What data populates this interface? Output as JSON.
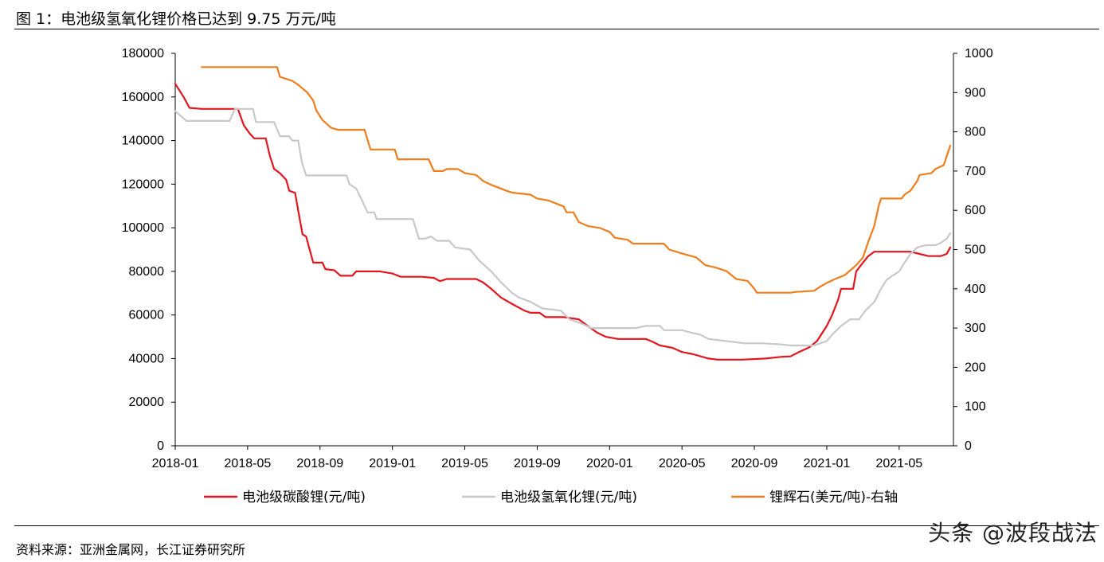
{
  "figure": {
    "title": "图 1：电池级氢氧化锂价格已达到 9.75 万元/吨",
    "source": "资料来源：亚洲金属网，长江证券研究所",
    "watermark": "头条 @波段战法"
  },
  "chart_data": {
    "type": "line",
    "title": "",
    "xlabel": "",
    "ylabel": "",
    "x_ticks": [
      "2018-01",
      "2018-05",
      "2018-09",
      "2019-01",
      "2019-05",
      "2019-09",
      "2020-01",
      "2020-05",
      "2020-09",
      "2021-01",
      "2021-05"
    ],
    "x_range": [
      "2018-01",
      "2021-08"
    ],
    "y_left": {
      "range": [
        0,
        180000
      ],
      "ticks": [
        "0",
        "20000",
        "40000",
        "60000",
        "80000",
        "100000",
        "120000",
        "140000",
        "160000",
        "180000"
      ]
    },
    "y_right": {
      "range": [
        0,
        1000
      ],
      "ticks": [
        "0",
        "100",
        "200",
        "300",
        "400",
        "500",
        "600",
        "700",
        "800",
        "900",
        "1000"
      ]
    },
    "legend_position": "bottom",
    "grid": false,
    "series": [
      {
        "name": "电池级碳酸锂(元/吨)",
        "axis": "left",
        "color": "#e3151e",
        "points": [
          [
            "2018-01-01",
            166000
          ],
          [
            "2018-01-15",
            160000
          ],
          [
            "2018-01-25",
            155000
          ],
          [
            "2018-02-15",
            154500
          ],
          [
            "2018-03-15",
            154500
          ],
          [
            "2018-04-15",
            154500
          ],
          [
            "2018-04-25",
            147000
          ],
          [
            "2018-05-05",
            143000
          ],
          [
            "2018-05-12",
            141000
          ],
          [
            "2018-06-01",
            141000
          ],
          [
            "2018-06-08",
            133000
          ],
          [
            "2018-06-15",
            127000
          ],
          [
            "2018-06-25",
            125000
          ],
          [
            "2018-07-05",
            122000
          ],
          [
            "2018-07-10",
            117000
          ],
          [
            "2018-07-20",
            116000
          ],
          [
            "2018-07-25",
            108000
          ],
          [
            "2018-08-02",
            97000
          ],
          [
            "2018-08-08",
            96000
          ],
          [
            "2018-08-15",
            89000
          ],
          [
            "2018-08-20",
            84000
          ],
          [
            "2018-09-05",
            84000
          ],
          [
            "2018-09-10",
            81000
          ],
          [
            "2018-09-25",
            80500
          ],
          [
            "2018-10-05",
            78000
          ],
          [
            "2018-10-25",
            78000
          ],
          [
            "2018-11-01",
            80000
          ],
          [
            "2018-12-10",
            80000
          ],
          [
            "2019-01-01",
            79000
          ],
          [
            "2019-01-15",
            77500
          ],
          [
            "2019-02-20",
            77500
          ],
          [
            "2019-03-10",
            77000
          ],
          [
            "2019-03-20",
            75500
          ],
          [
            "2019-04-01",
            76500
          ],
          [
            "2019-05-01",
            76500
          ],
          [
            "2019-05-20",
            76500
          ],
          [
            "2019-06-01",
            75000
          ],
          [
            "2019-06-15",
            72000
          ],
          [
            "2019-07-01",
            68000
          ],
          [
            "2019-07-20",
            65000
          ],
          [
            "2019-08-10",
            62000
          ],
          [
            "2019-08-20",
            61000
          ],
          [
            "2019-09-05",
            61000
          ],
          [
            "2019-09-15",
            59000
          ],
          [
            "2019-10-15",
            59000
          ],
          [
            "2019-11-10",
            58000
          ],
          [
            "2019-11-25",
            55000
          ],
          [
            "2019-12-10",
            52000
          ],
          [
            "2019-12-25",
            50000
          ],
          [
            "2020-01-15",
            49000
          ],
          [
            "2020-03-01",
            49000
          ],
          [
            "2020-03-10",
            48000
          ],
          [
            "2020-03-25",
            46000
          ],
          [
            "2020-04-15",
            45000
          ],
          [
            "2020-05-01",
            43000
          ],
          [
            "2020-05-20",
            42000
          ],
          [
            "2020-06-15",
            40000
          ],
          [
            "2020-07-01",
            39500
          ],
          [
            "2020-08-10",
            39500
          ],
          [
            "2020-09-20",
            40000
          ],
          [
            "2020-10-15",
            40800
          ],
          [
            "2020-11-01",
            41000
          ],
          [
            "2020-11-15",
            43000
          ],
          [
            "2020-12-01",
            45000
          ],
          [
            "2020-12-15",
            48000
          ],
          [
            "2021-01-01",
            55000
          ],
          [
            "2021-01-10",
            60000
          ],
          [
            "2021-01-20",
            67000
          ],
          [
            "2021-01-25",
            72000
          ],
          [
            "2021-02-05",
            72000
          ],
          [
            "2021-02-15",
            72000
          ],
          [
            "2021-02-20",
            80000
          ],
          [
            "2021-03-01",
            84000
          ],
          [
            "2021-03-10",
            87000
          ],
          [
            "2021-03-20",
            89000
          ],
          [
            "2021-05-01",
            89000
          ],
          [
            "2021-05-20",
            89000
          ],
          [
            "2021-06-05",
            88000
          ],
          [
            "2021-06-20",
            87000
          ],
          [
            "2021-07-10",
            87000
          ],
          [
            "2021-07-20",
            88000
          ],
          [
            "2021-07-26",
            91000
          ]
        ]
      },
      {
        "name": "电池级氢氧化锂(元/吨)",
        "axis": "left",
        "color": "#c8c8c8",
        "points": [
          [
            "2018-01-01",
            153500
          ],
          [
            "2018-01-20",
            149000
          ],
          [
            "2018-04-01",
            149000
          ],
          [
            "2018-04-10",
            154500
          ],
          [
            "2018-05-10",
            154500
          ],
          [
            "2018-05-15",
            148500
          ],
          [
            "2018-06-15",
            148500
          ],
          [
            "2018-06-25",
            142000
          ],
          [
            "2018-07-10",
            142000
          ],
          [
            "2018-07-15",
            140000
          ],
          [
            "2018-07-25",
            140000
          ],
          [
            "2018-08-01",
            130000
          ],
          [
            "2018-08-08",
            124000
          ],
          [
            "2018-09-15",
            124000
          ],
          [
            "2018-10-15",
            124000
          ],
          [
            "2018-10-20",
            120000
          ],
          [
            "2018-11-01",
            118000
          ],
          [
            "2018-11-10",
            113000
          ],
          [
            "2018-11-20",
            107000
          ],
          [
            "2018-12-01",
            107000
          ],
          [
            "2018-12-05",
            104000
          ],
          [
            "2019-01-15",
            104000
          ],
          [
            "2019-02-05",
            104000
          ],
          [
            "2019-02-15",
            95000
          ],
          [
            "2019-02-25",
            95000
          ],
          [
            "2019-03-05",
            96000
          ],
          [
            "2019-03-15",
            94000
          ],
          [
            "2019-04-05",
            94000
          ],
          [
            "2019-04-15",
            91000
          ],
          [
            "2019-05-10",
            90000
          ],
          [
            "2019-05-25",
            85000
          ],
          [
            "2019-06-15",
            80000
          ],
          [
            "2019-07-01",
            75000
          ],
          [
            "2019-07-20",
            70000
          ],
          [
            "2019-08-01",
            68000
          ],
          [
            "2019-08-20",
            66000
          ],
          [
            "2019-09-10",
            63000
          ],
          [
            "2019-10-10",
            62000
          ],
          [
            "2019-10-25",
            58000
          ],
          [
            "2019-11-15",
            56000
          ],
          [
            "2019-12-01",
            54000
          ],
          [
            "2020-01-01",
            54000
          ],
          [
            "2020-02-15",
            54000
          ],
          [
            "2020-03-01",
            55000
          ],
          [
            "2020-03-25",
            55000
          ],
          [
            "2020-04-01",
            53000
          ],
          [
            "2020-05-01",
            53000
          ],
          [
            "2020-05-15",
            52000
          ],
          [
            "2020-06-01",
            51000
          ],
          [
            "2020-06-15",
            49000
          ],
          [
            "2020-07-15",
            48000
          ],
          [
            "2020-08-15",
            47000
          ],
          [
            "2020-09-15",
            47000
          ],
          [
            "2020-10-15",
            46500
          ],
          [
            "2020-11-01",
            46000
          ],
          [
            "2020-12-10",
            46000
          ],
          [
            "2020-12-20",
            47000
          ],
          [
            "2021-01-01",
            48000
          ],
          [
            "2021-01-10",
            51000
          ],
          [
            "2021-01-25",
            55000
          ],
          [
            "2021-02-10",
            58000
          ],
          [
            "2021-02-25",
            58000
          ],
          [
            "2021-03-05",
            62000
          ],
          [
            "2021-03-20",
            66000
          ],
          [
            "2021-04-01",
            72000
          ],
          [
            "2021-04-10",
            76000
          ],
          [
            "2021-04-20",
            78000
          ],
          [
            "2021-05-01",
            80000
          ],
          [
            "2021-05-10",
            84000
          ],
          [
            "2021-05-20",
            88000
          ],
          [
            "2021-06-01",
            91000
          ],
          [
            "2021-06-15",
            92000
          ],
          [
            "2021-07-01",
            92000
          ],
          [
            "2021-07-10",
            93000
          ],
          [
            "2021-07-20",
            95000
          ],
          [
            "2021-07-26",
            97500
          ]
        ]
      },
      {
        "name": "锂辉石(美元/吨)-右轴",
        "axis": "right",
        "color": "#f07d1c",
        "points": [
          [
            "2018-02-15",
            965
          ],
          [
            "2018-06-20",
            965
          ],
          [
            "2018-06-25",
            940
          ],
          [
            "2018-07-15",
            930
          ],
          [
            "2018-07-25",
            920
          ],
          [
            "2018-08-10",
            900
          ],
          [
            "2018-08-20",
            880
          ],
          [
            "2018-08-25",
            855
          ],
          [
            "2018-09-05",
            830
          ],
          [
            "2018-09-20",
            810
          ],
          [
            "2018-10-01",
            805
          ],
          [
            "2018-11-15",
            805
          ],
          [
            "2018-11-25",
            755
          ],
          [
            "2019-01-05",
            755
          ],
          [
            "2019-01-10",
            730
          ],
          [
            "2019-03-01",
            730
          ],
          [
            "2019-03-10",
            700
          ],
          [
            "2019-03-25",
            700
          ],
          [
            "2019-04-01",
            705
          ],
          [
            "2019-04-20",
            705
          ],
          [
            "2019-05-01",
            695
          ],
          [
            "2019-05-20",
            690
          ],
          [
            "2019-06-01",
            675
          ],
          [
            "2019-06-15",
            665
          ],
          [
            "2019-07-10",
            650
          ],
          [
            "2019-07-20",
            645
          ],
          [
            "2019-08-20",
            640
          ],
          [
            "2019-09-01",
            630
          ],
          [
            "2019-09-20",
            625
          ],
          [
            "2019-10-15",
            610
          ],
          [
            "2019-10-20",
            595
          ],
          [
            "2019-11-01",
            595
          ],
          [
            "2019-11-10",
            570
          ],
          [
            "2019-11-25",
            560
          ],
          [
            "2019-12-15",
            555
          ],
          [
            "2020-01-01",
            545
          ],
          [
            "2020-01-10",
            530
          ],
          [
            "2020-02-01",
            525
          ],
          [
            "2020-02-10",
            515
          ],
          [
            "2020-04-01",
            515
          ],
          [
            "2020-04-10",
            500
          ],
          [
            "2020-05-01",
            490
          ],
          [
            "2020-05-25",
            480
          ],
          [
            "2020-06-10",
            460
          ],
          [
            "2020-06-25",
            455
          ],
          [
            "2020-07-15",
            445
          ],
          [
            "2020-08-01",
            425
          ],
          [
            "2020-08-20",
            420
          ],
          [
            "2020-09-01",
            400
          ],
          [
            "2020-09-05",
            390
          ],
          [
            "2020-10-01",
            390
          ],
          [
            "2020-11-01",
            390
          ],
          [
            "2020-11-10",
            392
          ],
          [
            "2020-12-10",
            395
          ],
          [
            "2020-12-20",
            405
          ],
          [
            "2021-01-01",
            415
          ],
          [
            "2021-01-15",
            425
          ],
          [
            "2021-02-01",
            435
          ],
          [
            "2021-02-20",
            460
          ],
          [
            "2021-03-01",
            480
          ],
          [
            "2021-03-10",
            520
          ],
          [
            "2021-03-20",
            560
          ],
          [
            "2021-03-28",
            615
          ],
          [
            "2021-04-01",
            630
          ],
          [
            "2021-05-05",
            630
          ],
          [
            "2021-05-10",
            640
          ],
          [
            "2021-05-20",
            650
          ],
          [
            "2021-06-01",
            675
          ],
          [
            "2021-06-05",
            690
          ],
          [
            "2021-06-25",
            695
          ],
          [
            "2021-07-01",
            705
          ],
          [
            "2021-07-15",
            715
          ],
          [
            "2021-07-26",
            765
          ]
        ]
      }
    ]
  }
}
